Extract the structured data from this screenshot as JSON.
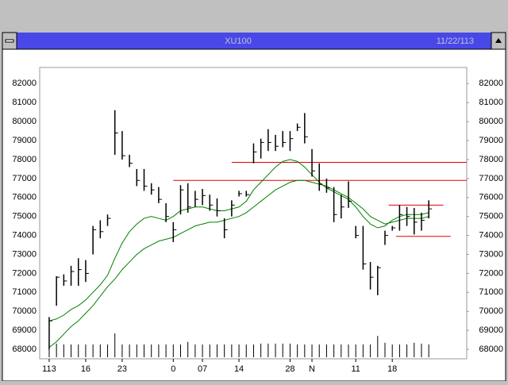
{
  "chart_data": {
    "type": "ohlc",
    "title": "XU100",
    "date": "11/22/113",
    "categories": [
      "113",
      null,
      null,
      null,
      null,
      "16",
      null,
      null,
      null,
      null,
      "23",
      null,
      null,
      null,
      null,
      null,
      null,
      "0",
      null,
      null,
      null,
      "07",
      null,
      null,
      null,
      null,
      "14",
      null,
      null,
      null,
      null,
      null,
      null,
      "28",
      null,
      null,
      "N",
      null,
      null,
      null,
      null,
      null,
      "11",
      null,
      null,
      null,
      null,
      "18",
      null,
      null,
      null,
      null,
      null
    ],
    "xlim": [
      -1.3,
      57.2
    ],
    "high": [
      69700,
      71850,
      71950,
      72400,
      72800,
      72700,
      74500,
      74800,
      75100,
      80600,
      79500,
      78250,
      77500,
      77500,
      76750,
      76550,
      75700,
      74700,
      76650,
      76750,
      76350,
      76450,
      76150,
      75950,
      74900,
      75850,
      76350,
      76350,
      78850,
      79100,
      79600,
      79300,
      79500,
      79500,
      79900,
      80450,
      78550,
      77800,
      77000,
      76550,
      76150,
      76850,
      74500,
      74500,
      72600,
      72400,
      74250,
      74500,
      75600,
      75500,
      75450,
      75200,
      75850
    ],
    "low": [
      68000,
      70300,
      71350,
      71350,
      71350,
      71550,
      73000,
      73850,
      74500,
      78250,
      78000,
      77600,
      76600,
      76350,
      76150,
      75700,
      74700,
      73650,
      75100,
      75200,
      75500,
      75600,
      75300,
      75000,
      73850,
      75000,
      76050,
      76050,
      77800,
      78050,
      78450,
      78450,
      78650,
      78450,
      79500,
      78850,
      77100,
      76350,
      76250,
      74700,
      74900,
      75450,
      73850,
      72200,
      71150,
      70850,
      73500,
      74250,
      74250,
      74500,
      74050,
      74250,
      74900
    ],
    "close": [
      69500,
      71800,
      71600,
      72100,
      72200,
      72000,
      74300,
      74200,
      74900,
      79400,
      78200,
      77800,
      76900,
      76600,
      76400,
      75900,
      75000,
      74300,
      76400,
      75500,
      75900,
      76100,
      75600,
      75300,
      74300,
      75600,
      76200,
      76150,
      78400,
      78900,
      78900,
      78700,
      78900,
      79100,
      79700,
      79200,
      77400,
      76700,
      76500,
      75100,
      75500,
      75800,
      74000,
      72500,
      71800,
      72300,
      74000,
      74400,
      75100,
      75000,
      74700,
      74800,
      75400
    ],
    "series": [
      {
        "color": "#008000",
        "values": [
          69500,
          69600,
          69800,
          70100,
          70300,
          70600,
          71000,
          71400,
          71900,
          72800,
          73600,
          74200,
          74600,
          74900,
          75000,
          74900,
          74800,
          75000,
          75300,
          75400,
          75500,
          75500,
          75400,
          75300,
          75300,
          75400,
          75500,
          75800,
          76400,
          76800,
          77200,
          77600,
          77900,
          78000,
          77900,
          77600,
          77200,
          76800,
          76500,
          76300,
          76100,
          75900,
          75500,
          75000,
          74600,
          74400,
          74500,
          74800,
          75000,
          75100,
          75100,
          75100,
          75200
        ]
      },
      {
        "color": "#008000",
        "values": [
          68100,
          68400,
          68800,
          69200,
          69500,
          69900,
          70300,
          70800,
          71300,
          71700,
          72200,
          72600,
          73000,
          73300,
          73500,
          73700,
          73800,
          73900,
          74100,
          74300,
          74500,
          74600,
          74700,
          74700,
          74800,
          74900,
          75000,
          75200,
          75500,
          75800,
          76100,
          76400,
          76600,
          76800,
          76900,
          76900,
          76800,
          76700,
          76600,
          76400,
          76200,
          76000,
          75700,
          75400,
          75000,
          74800,
          74600,
          74700,
          74800,
          74900,
          74900,
          74900,
          75000
        ]
      }
    ],
    "hlines": [
      {
        "value": 77850,
        "from": 25,
        "to": 57.2,
        "color": "#e00000"
      },
      {
        "value": 76900,
        "from": 17,
        "to": 57.2,
        "color": "#e00000"
      },
      {
        "value": 75600,
        "from": 46.5,
        "to": 54,
        "color": "#e00000"
      },
      {
        "value": 73950,
        "from": 47.5,
        "to": 55,
        "color": "#e00000"
      }
    ],
    "volume": [
      15,
      16,
      15,
      15,
      15,
      15,
      15,
      15,
      15,
      28,
      15,
      15,
      15,
      15,
      15,
      15,
      15,
      15,
      15,
      18,
      15,
      15,
      15,
      15,
      15,
      15,
      15,
      15,
      15,
      16,
      16,
      16,
      16,
      16,
      15,
      15,
      15,
      15,
      15,
      15,
      15,
      15,
      15,
      15,
      15,
      25,
      17,
      15,
      15,
      15,
      17,
      16,
      15
    ],
    "ylim": [
      67500,
      82850
    ],
    "yticks": [
      68000,
      69000,
      70000,
      71000,
      72000,
      73000,
      74000,
      75000,
      76000,
      77000,
      78000,
      79000,
      80000,
      81000,
      82000
    ]
  }
}
